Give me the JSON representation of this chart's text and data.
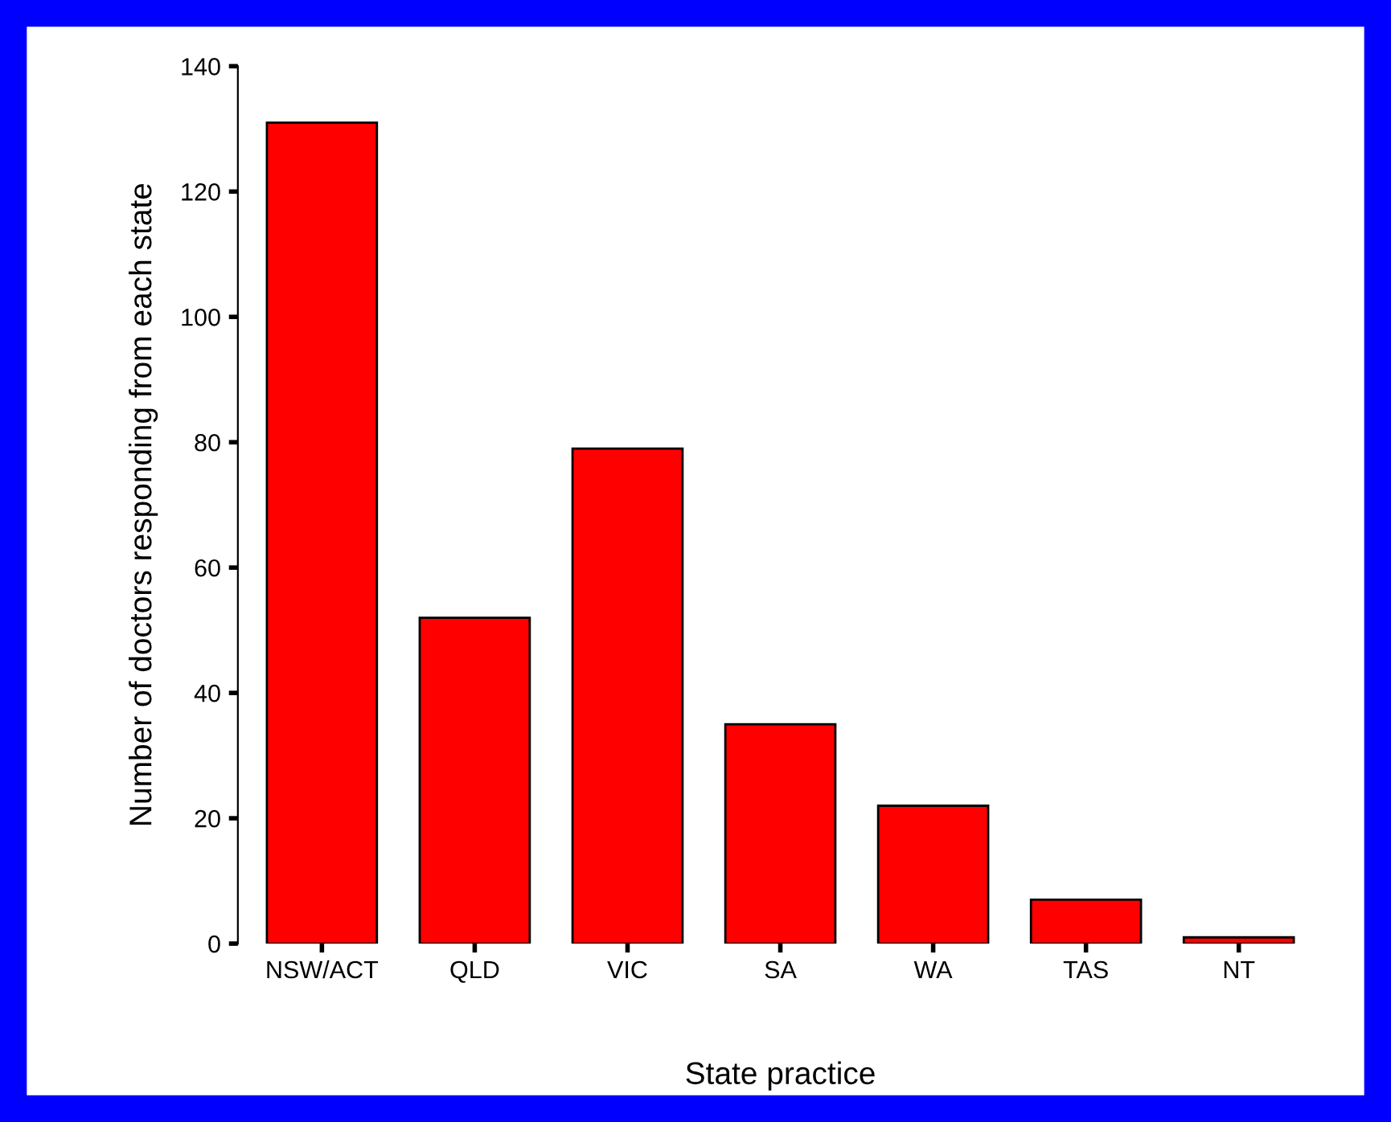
{
  "chart_data": {
    "type": "bar",
    "xlabel": "State practice",
    "ylabel": "Number of doctors responding from each state",
    "categories": [
      "NSW/ACT",
      "QLD",
      "VIC",
      "SA",
      "WA",
      "TAS",
      "NT"
    ],
    "values": [
      131,
      52,
      79,
      35,
      22,
      7,
      1
    ],
    "color": "#ff0000",
    "ylim": [
      0,
      140
    ],
    "yticks": [
      0,
      20,
      40,
      60,
      80,
      100,
      120,
      140
    ],
    "grid": false
  }
}
